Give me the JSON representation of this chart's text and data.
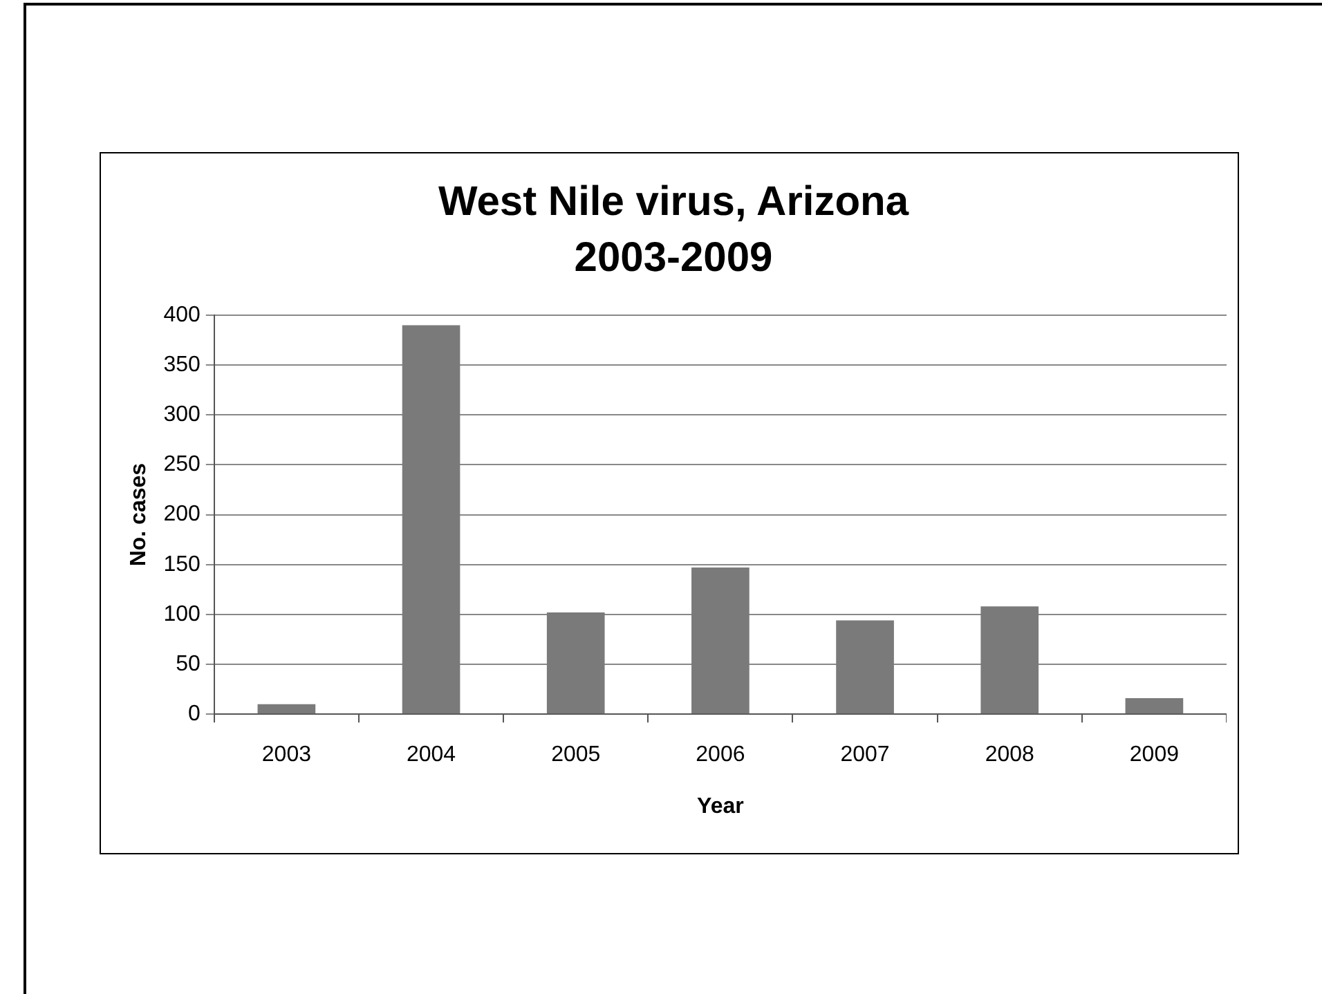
{
  "chart_data": {
    "type": "bar",
    "title": "West Nile virus, Arizona\n2003-2009",
    "xlabel": "Year",
    "ylabel": "No. cases",
    "categories": [
      "2003",
      "2004",
      "2005",
      "2006",
      "2007",
      "2008",
      "2009"
    ],
    "values": [
      10,
      390,
      102,
      147,
      94,
      108,
      16
    ],
    "color": "#7a7a7a",
    "ylim": [
      0,
      400
    ],
    "yticks": [
      0,
      50,
      100,
      150,
      200,
      250,
      300,
      350,
      400
    ],
    "grid": "y",
    "legend": false
  }
}
